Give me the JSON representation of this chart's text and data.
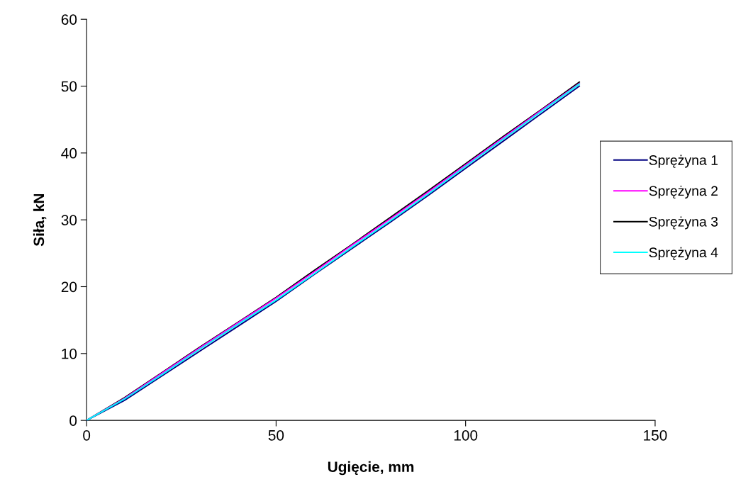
{
  "chart_data": {
    "type": "line",
    "xlabel": "Ugięcie, mm",
    "ylabel": "Siła, kN",
    "x": [
      0,
      10,
      20,
      30,
      40,
      50,
      60,
      70,
      80,
      90,
      100,
      110,
      120,
      130
    ],
    "series": [
      {
        "name": "Sprężyna 1",
        "color": "#000080",
        "values": [
          0,
          3.0,
          6.7,
          10.4,
          14.1,
          17.8,
          21.8,
          25.7,
          29.6,
          33.6,
          37.7,
          41.8,
          45.9,
          50.0
        ]
      },
      {
        "name": "Sprężyna 2",
        "color": "#ff00ff",
        "values": [
          0,
          3.3,
          7.1,
          10.9,
          14.6,
          18.3,
          22.2,
          26.2,
          30.1,
          34.1,
          38.2,
          42.3,
          46.4,
          50.4
        ]
      },
      {
        "name": "Sprężyna 3",
        "color": "#000000",
        "values": [
          0,
          3.4,
          7.2,
          11.0,
          14.7,
          18.4,
          22.4,
          26.3,
          30.3,
          34.3,
          38.4,
          42.5,
          46.5,
          50.6
        ]
      },
      {
        "name": "Sprężyna 4",
        "color": "#00ffff",
        "values": [
          0,
          3.2,
          6.9,
          10.7,
          14.4,
          18.0,
          21.9,
          25.9,
          29.8,
          33.8,
          38.0,
          42.1,
          46.2,
          50.3
        ]
      }
    ],
    "xlim": [
      0,
      150
    ],
    "xticks": [
      0,
      50,
      100,
      150
    ],
    "ylim": [
      0,
      60
    ],
    "yticks": [
      0,
      10,
      20,
      30,
      40,
      50,
      60
    ],
    "grid": false,
    "legend": "right",
    "marker": "none",
    "line_style": "solid"
  }
}
